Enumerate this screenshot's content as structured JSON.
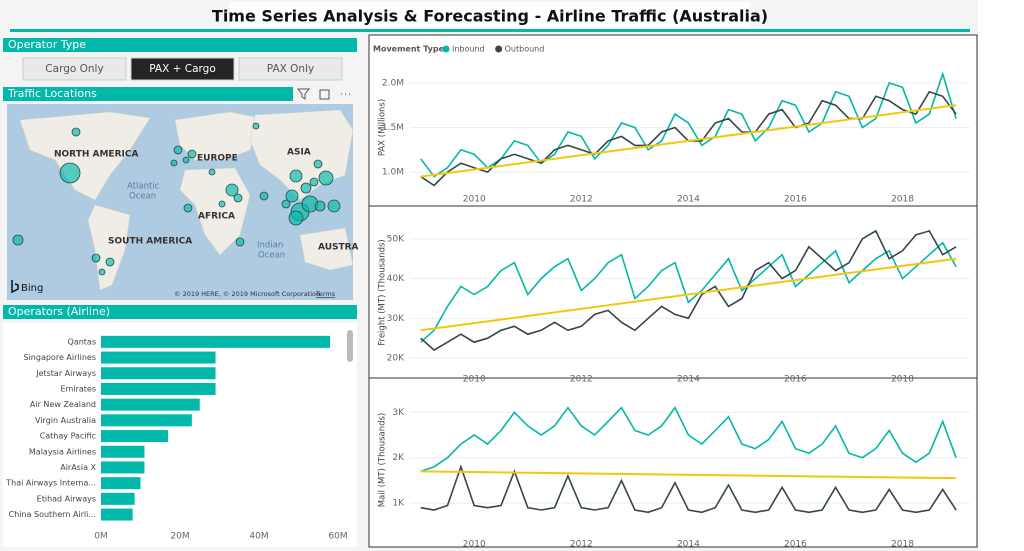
{
  "header": {
    "title": "Time Series Analysis & Forecasting - Airline Traffic (Australia)"
  },
  "operator_type": {
    "title": "Operator Type",
    "options": [
      "Cargo Only",
      "PAX + Cargo",
      "PAX Only"
    ],
    "selected": 1
  },
  "traffic_locations": {
    "title": "Traffic Locations",
    "labels": [
      "NORTH AMERICA",
      "EUROPE",
      "ASIA",
      "Atlantic",
      "Ocean",
      "AFRICA",
      "SOUTH AMERICA",
      "Indian",
      "Ocean",
      "AUSTRA"
    ],
    "attribution": "© 2019 HERE, © 2019 Microsoft Corporation",
    "terms": "Terms",
    "logo": "Bing"
  },
  "chart_data": [
    {
      "type": "bar",
      "orientation": "horizontal",
      "title": "Operators (Airline)",
      "color": "#01b8aa",
      "categories": [
        "Qantas",
        "Singapore Airlines",
        "Jetstar Airways",
        "Emirates",
        "Air New Zealand",
        "Virgin Australia",
        "Cathay Pacific",
        "Malaysia Airlines",
        "AirAsia X",
        "Thai Airways Interna...",
        "Etihad Airways",
        "China Southern Airli..."
      ],
      "values": [
        58000000,
        29000000,
        29000000,
        29000000,
        25000000,
        23000000,
        17000000,
        11000000,
        11000000,
        10000000,
        8500000,
        8000000
      ],
      "xlim": [
        0,
        60000000
      ],
      "xticks": [
        {
          "value": 0,
          "label": "0M"
        },
        {
          "value": 20000000,
          "label": "20M"
        },
        {
          "value": 40000000,
          "label": "40M"
        },
        {
          "value": 60000000,
          "label": "60M"
        }
      ]
    },
    {
      "type": "line",
      "legend_title": "Movement Type",
      "y_label": "PAX (Millions)",
      "x": [
        2009,
        2009.25,
        2009.5,
        2009.75,
        2010,
        2010.25,
        2010.5,
        2010.75,
        2011,
        2011.25,
        2011.5,
        2011.75,
        2012,
        2012.25,
        2012.5,
        2012.75,
        2013,
        2013.25,
        2013.5,
        2013.75,
        2014,
        2014.25,
        2014.5,
        2014.75,
        2015,
        2015.25,
        2015.5,
        2015.75,
        2016,
        2016.25,
        2016.5,
        2016.75,
        2017,
        2017.25,
        2017.5,
        2017.75,
        2018,
        2018.25,
        2018.5,
        2018.75,
        2019
      ],
      "xlim": [
        2008.8,
        2019.26
      ],
      "xticks": [
        2010,
        2012,
        2014,
        2016,
        2018
      ],
      "ylim": [
        0.8,
        2.2
      ],
      "yticks": [
        {
          "value": 1.0,
          "label": "1.0M"
        },
        {
          "value": 1.5,
          "label": "1.5M"
        },
        {
          "value": 2.0,
          "label": "2.0M"
        }
      ],
      "series": [
        {
          "name": "Inbound",
          "color": "#01b8aa",
          "values": [
            1.15,
            0.95,
            1.05,
            1.25,
            1.2,
            1.05,
            1.15,
            1.35,
            1.3,
            1.1,
            1.2,
            1.45,
            1.4,
            1.15,
            1.3,
            1.55,
            1.5,
            1.25,
            1.35,
            1.65,
            1.55,
            1.3,
            1.4,
            1.7,
            1.65,
            1.35,
            1.5,
            1.8,
            1.75,
            1.45,
            1.55,
            1.9,
            1.85,
            1.5,
            1.6,
            2.0,
            1.95,
            1.55,
            1.65,
            2.1,
            1.6
          ]
        },
        {
          "name": "Outbound",
          "color": "#374649",
          "values": [
            0.95,
            0.85,
            1.0,
            1.1,
            1.05,
            1.0,
            1.15,
            1.2,
            1.15,
            1.1,
            1.25,
            1.3,
            1.25,
            1.2,
            1.35,
            1.4,
            1.3,
            1.3,
            1.45,
            1.5,
            1.35,
            1.35,
            1.55,
            1.6,
            1.45,
            1.45,
            1.65,
            1.7,
            1.5,
            1.55,
            1.8,
            1.75,
            1.6,
            1.6,
            1.85,
            1.8,
            1.7,
            1.65,
            1.9,
            1.85,
            1.65
          ]
        }
      ],
      "trend": {
        "color": "#f2c80f",
        "x": [
          2009,
          2019
        ],
        "values": [
          0.95,
          1.75
        ]
      }
    },
    {
      "type": "line",
      "y_label": "Freight (MT) (Thousands)",
      "x": [
        2009,
        2009.25,
        2009.5,
        2009.75,
        2010,
        2010.25,
        2010.5,
        2010.75,
        2011,
        2011.25,
        2011.5,
        2011.75,
        2012,
        2012.25,
        2012.5,
        2012.75,
        2013,
        2013.25,
        2013.5,
        2013.75,
        2014,
        2014.25,
        2014.5,
        2014.75,
        2015,
        2015.25,
        2015.5,
        2015.75,
        2016,
        2016.25,
        2016.5,
        2016.75,
        2017,
        2017.25,
        2017.5,
        2017.75,
        2018,
        2018.25,
        2018.5,
        2018.75,
        2019
      ],
      "xlim": [
        2008.8,
        2019.26
      ],
      "xticks": [
        2010,
        2012,
        2014,
        2016,
        2018
      ],
      "ylim": [
        17,
        56
      ],
      "yticks": [
        {
          "value": 20,
          "label": "20K"
        },
        {
          "value": 30,
          "label": "30K"
        },
        {
          "value": 40,
          "label": "40K"
        },
        {
          "value": 50,
          "label": "50K"
        }
      ],
      "series": [
        {
          "color": "#01b8aa",
          "values": [
            24,
            27,
            33,
            38,
            36,
            38,
            42,
            44,
            36,
            40,
            43,
            45,
            37,
            40,
            44,
            46,
            35,
            38,
            42,
            44,
            34,
            37,
            41,
            45,
            37,
            40,
            43,
            46,
            38,
            41,
            44,
            47,
            39,
            42,
            45,
            47,
            40,
            43,
            46,
            49,
            43
          ]
        },
        {
          "color": "#374649",
          "values": [
            25,
            22,
            24,
            26,
            24,
            25,
            27,
            28,
            26,
            27,
            29,
            27,
            28,
            31,
            32,
            29,
            27,
            30,
            33,
            31,
            30,
            36,
            38,
            33,
            35,
            42,
            44,
            40,
            42,
            48,
            45,
            42,
            44,
            50,
            52,
            45,
            47,
            51,
            52,
            46,
            48
          ]
        }
      ],
      "trend": {
        "color": "#f2c80f",
        "x": [
          2009,
          2019
        ],
        "values": [
          27,
          45
        ]
      }
    },
    {
      "type": "line",
      "y_label": "Mail (MT) (Thousands)",
      "x": [
        2009,
        2009.25,
        2009.5,
        2009.75,
        2010,
        2010.25,
        2010.5,
        2010.75,
        2011,
        2011.25,
        2011.5,
        2011.75,
        2012,
        2012.25,
        2012.5,
        2012.75,
        2013,
        2013.25,
        2013.5,
        2013.75,
        2014,
        2014.25,
        2014.5,
        2014.75,
        2015,
        2015.25,
        2015.5,
        2015.75,
        2016,
        2016.25,
        2016.5,
        2016.75,
        2017,
        2017.25,
        2017.5,
        2017.75,
        2018,
        2018.25,
        2018.5,
        2018.75,
        2019
      ],
      "xlim": [
        2008.8,
        2019.26
      ],
      "xticks": [
        2010,
        2012,
        2014,
        2016,
        2018
      ],
      "ylim": [
        0.3,
        3.6
      ],
      "yticks": [
        {
          "value": 1,
          "label": "1K"
        },
        {
          "value": 2,
          "label": "2K"
        },
        {
          "value": 3,
          "label": "3K"
        }
      ],
      "series": [
        {
          "color": "#01b8aa",
          "values": [
            1.7,
            1.8,
            2.0,
            2.3,
            2.5,
            2.3,
            2.6,
            3.0,
            2.7,
            2.5,
            2.7,
            3.1,
            2.7,
            2.5,
            2.8,
            3.1,
            2.6,
            2.5,
            2.7,
            3.1,
            2.5,
            2.3,
            2.6,
            2.9,
            2.3,
            2.2,
            2.4,
            2.8,
            2.2,
            2.1,
            2.3,
            2.7,
            2.1,
            2.0,
            2.2,
            2.6,
            2.1,
            1.9,
            2.1,
            2.8,
            2.0
          ]
        },
        {
          "color": "#374649",
          "values": [
            0.9,
            0.85,
            0.95,
            1.8,
            0.95,
            0.9,
            0.95,
            1.7,
            0.9,
            0.85,
            0.9,
            1.6,
            0.9,
            0.85,
            0.9,
            1.5,
            0.85,
            0.8,
            0.9,
            1.45,
            0.85,
            0.8,
            0.9,
            1.4,
            0.85,
            0.8,
            0.85,
            1.35,
            0.85,
            0.8,
            0.85,
            1.35,
            0.85,
            0.8,
            0.85,
            1.3,
            0.85,
            0.8,
            0.85,
            1.3,
            0.85
          ]
        }
      ],
      "trend": {
        "color": "#f2c80f",
        "x": [
          2009,
          2019
        ],
        "values": [
          1.7,
          1.55
        ]
      }
    }
  ]
}
